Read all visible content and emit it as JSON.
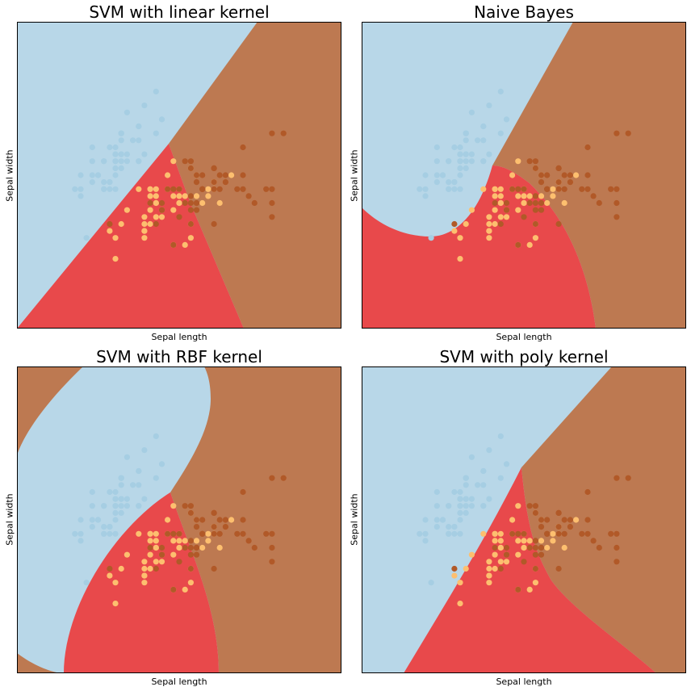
{
  "chart_data": [
    {
      "type": "scatter",
      "title": "SVM with linear kernel",
      "xlabel": "Sepal length",
      "ylabel": "Sepal width",
      "kernel": "linear",
      "xticks": [],
      "yticks": []
    },
    {
      "type": "scatter",
      "title": "Naive Bayes",
      "xlabel": "Sepal length",
      "ylabel": "Sepal width",
      "kernel": "nb",
      "xticks": [],
      "yticks": []
    },
    {
      "type": "scatter",
      "title": "SVM with RBF kernel",
      "xlabel": "Sepal length",
      "ylabel": "Sepal width",
      "kernel": "rbf",
      "xticks": [],
      "yticks": []
    },
    {
      "type": "scatter",
      "title": "SVM with poly kernel",
      "xlabel": "Sepal length",
      "ylabel": "Sepal width",
      "kernel": "poly",
      "xticks": [],
      "yticks": []
    }
  ],
  "colors": {
    "region_setosa": "#b8d7e8",
    "region_versicolor": "#e8494b",
    "region_virginica": "#bd7951",
    "point_setosa": "#a6cee3",
    "point_versicolor": "#fdbf6f",
    "point_virginica": "#b15928"
  },
  "scatter": {
    "setosa": [
      [
        5.1,
        3.5
      ],
      [
        4.9,
        3.0
      ],
      [
        4.7,
        3.2
      ],
      [
        4.6,
        3.1
      ],
      [
        5.0,
        3.6
      ],
      [
        5.4,
        3.9
      ],
      [
        4.6,
        3.4
      ],
      [
        5.0,
        3.4
      ],
      [
        4.4,
        2.9
      ],
      [
        4.9,
        3.1
      ],
      [
        5.4,
        3.7
      ],
      [
        4.8,
        3.4
      ],
      [
        4.8,
        3.0
      ],
      [
        4.3,
        3.0
      ],
      [
        5.8,
        4.0
      ],
      [
        5.7,
        4.4
      ],
      [
        5.4,
        3.9
      ],
      [
        5.1,
        3.5
      ],
      [
        5.7,
        3.8
      ],
      [
        5.1,
        3.8
      ],
      [
        5.4,
        3.4
      ],
      [
        5.1,
        3.7
      ],
      [
        4.6,
        3.6
      ],
      [
        5.1,
        3.3
      ],
      [
        4.8,
        3.4
      ],
      [
        5.0,
        3.0
      ],
      [
        5.0,
        3.4
      ],
      [
        5.2,
        3.5
      ],
      [
        5.2,
        3.4
      ],
      [
        4.7,
        3.2
      ],
      [
        4.8,
        3.1
      ],
      [
        5.4,
        3.4
      ],
      [
        5.2,
        4.1
      ],
      [
        5.5,
        4.2
      ],
      [
        4.9,
        3.1
      ],
      [
        5.0,
        3.2
      ],
      [
        5.5,
        3.5
      ],
      [
        4.9,
        3.6
      ],
      [
        4.4,
        3.0
      ],
      [
        5.1,
        3.4
      ],
      [
        5.0,
        3.5
      ],
      [
        4.5,
        2.3
      ],
      [
        4.4,
        3.2
      ],
      [
        5.0,
        3.5
      ],
      [
        5.1,
        3.8
      ],
      [
        4.8,
        3.0
      ],
      [
        5.1,
        3.8
      ],
      [
        4.6,
        3.2
      ],
      [
        5.3,
        3.7
      ],
      [
        5.0,
        3.3
      ]
    ],
    "versicolor": [
      [
        7.0,
        3.2
      ],
      [
        6.4,
        3.2
      ],
      [
        6.9,
        3.1
      ],
      [
        5.5,
        2.3
      ],
      [
        6.5,
        2.8
      ],
      [
        5.7,
        2.8
      ],
      [
        6.3,
        3.3
      ],
      [
        4.9,
        2.4
      ],
      [
        6.6,
        2.9
      ],
      [
        5.2,
        2.7
      ],
      [
        5.0,
        2.0
      ],
      [
        5.9,
        3.0
      ],
      [
        6.0,
        2.2
      ],
      [
        6.1,
        2.9
      ],
      [
        5.6,
        2.9
      ],
      [
        6.7,
        3.1
      ],
      [
        5.6,
        3.0
      ],
      [
        5.8,
        2.7
      ],
      [
        6.2,
        2.2
      ],
      [
        5.6,
        2.5
      ],
      [
        5.9,
        3.2
      ],
      [
        6.1,
        2.8
      ],
      [
        6.3,
        2.5
      ],
      [
        6.1,
        2.8
      ],
      [
        6.4,
        2.9
      ],
      [
        6.6,
        3.0
      ],
      [
        6.8,
        2.8
      ],
      [
        6.7,
        3.0
      ],
      [
        6.0,
        2.9
      ],
      [
        5.7,
        2.6
      ],
      [
        5.5,
        2.4
      ],
      [
        5.5,
        2.4
      ],
      [
        5.8,
        2.7
      ],
      [
        6.0,
        2.7
      ],
      [
        5.4,
        3.0
      ],
      [
        6.0,
        3.4
      ],
      [
        6.7,
        3.1
      ],
      [
        6.3,
        2.3
      ],
      [
        5.6,
        3.0
      ],
      [
        5.5,
        2.5
      ],
      [
        5.5,
        2.6
      ],
      [
        6.1,
        3.0
      ],
      [
        5.8,
        2.6
      ],
      [
        5.0,
        2.3
      ],
      [
        5.6,
        2.7
      ],
      [
        5.7,
        3.0
      ],
      [
        5.7,
        2.9
      ],
      [
        6.2,
        2.9
      ],
      [
        5.1,
        2.5
      ],
      [
        5.7,
        2.8
      ]
    ],
    "virginica": [
      [
        6.3,
        3.3
      ],
      [
        5.8,
        2.7
      ],
      [
        7.1,
        3.0
      ],
      [
        6.3,
        2.9
      ],
      [
        6.5,
        3.0
      ],
      [
        7.6,
        3.0
      ],
      [
        4.9,
        2.5
      ],
      [
        7.3,
        2.9
      ],
      [
        6.7,
        2.5
      ],
      [
        7.2,
        3.6
      ],
      [
        6.5,
        3.2
      ],
      [
        6.4,
        2.7
      ],
      [
        6.8,
        3.0
      ],
      [
        5.7,
        2.5
      ],
      [
        5.8,
        2.8
      ],
      [
        6.4,
        3.2
      ],
      [
        6.5,
        3.0
      ],
      [
        7.7,
        3.8
      ],
      [
        7.7,
        2.6
      ],
      [
        6.0,
        2.2
      ],
      [
        6.9,
        3.2
      ],
      [
        5.6,
        2.8
      ],
      [
        7.7,
        2.8
      ],
      [
        6.3,
        2.7
      ],
      [
        6.7,
        3.3
      ],
      [
        7.2,
        3.2
      ],
      [
        6.2,
        2.8
      ],
      [
        6.1,
        3.0
      ],
      [
        6.4,
        2.8
      ],
      [
        7.2,
        3.0
      ],
      [
        7.4,
        2.8
      ],
      [
        7.9,
        3.8
      ],
      [
        6.4,
        2.8
      ],
      [
        6.3,
        2.8
      ],
      [
        6.1,
        2.6
      ],
      [
        7.7,
        3.0
      ],
      [
        6.3,
        3.4
      ],
      [
        6.4,
        3.1
      ],
      [
        6.0,
        3.0
      ],
      [
        6.9,
        3.1
      ],
      [
        6.7,
        3.1
      ],
      [
        6.9,
        3.1
      ],
      [
        5.8,
        2.7
      ],
      [
        6.8,
        3.2
      ],
      [
        6.7,
        3.3
      ],
      [
        6.7,
        3.0
      ],
      [
        6.3,
        2.5
      ],
      [
        6.5,
        3.0
      ],
      [
        6.2,
        3.4
      ],
      [
        5.9,
        3.0
      ]
    ]
  },
  "axis": {
    "xlim": [
      3.3,
      8.9
    ],
    "ylim": [
      1.0,
      5.4
    ]
  }
}
